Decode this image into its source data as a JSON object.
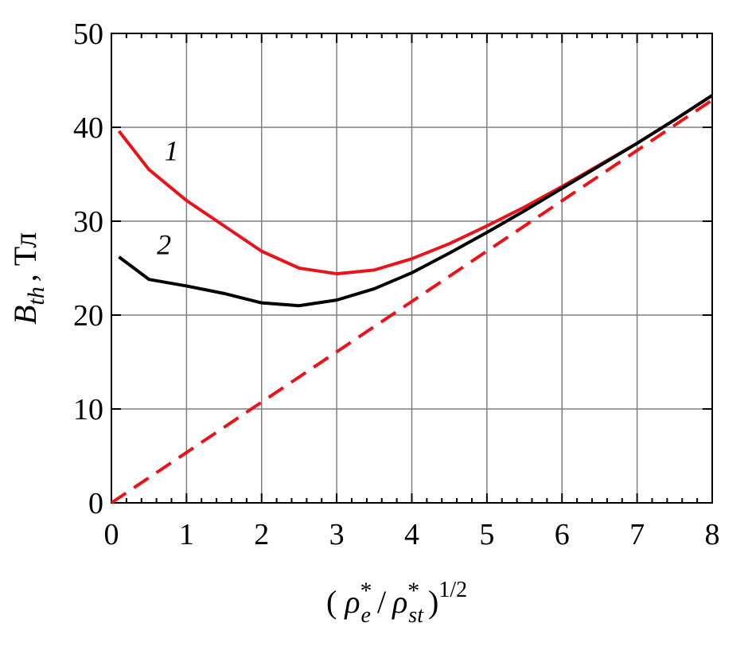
{
  "chart_data": {
    "type": "line",
    "xlabel_parts": [
      "(",
      "ρ",
      "*",
      "e",
      "/",
      "ρ",
      "*",
      "st",
      ")",
      "1/2"
    ],
    "ylabel_parts": [
      "B",
      "th",
      ", Тл"
    ],
    "series": [
      {
        "name": "1",
        "color": "#e8141a",
        "dash": false,
        "x": [
          0.1,
          0.5,
          1,
          1.5,
          2,
          2.5,
          3,
          3.5,
          4,
          4.5,
          5,
          5.5,
          6,
          6.5,
          7,
          7.5,
          8
        ],
        "values": [
          39.6,
          35.5,
          32.2,
          29.5,
          26.8,
          25,
          24.4,
          24.8,
          26,
          27.6,
          29.5,
          31.5,
          33.7,
          36,
          38.3,
          40.8,
          43.4
        ]
      },
      {
        "name": "2",
        "color": "#000000",
        "dash": false,
        "x": [
          0.1,
          0.5,
          1,
          1.5,
          2,
          2.5,
          3,
          3.5,
          4,
          4.5,
          5,
          5.5,
          6,
          6.5,
          7,
          7.5,
          8
        ],
        "values": [
          26.2,
          23.8,
          23.1,
          22.3,
          21.3,
          21.0,
          21.6,
          22.8,
          24.5,
          26.6,
          28.8,
          31.1,
          33.5,
          35.9,
          38.3,
          40.8,
          43.4
        ]
      },
      {
        "color": "#e8141a",
        "dash": true,
        "x": [
          0,
          8
        ],
        "values": [
          0,
          42.9
        ]
      }
    ],
    "xlim": [
      0,
      8
    ],
    "xticks": [
      0,
      1,
      2,
      3,
      4,
      5,
      6,
      7,
      8
    ],
    "ylim": [
      0,
      50
    ],
    "yticks": [
      0,
      10,
      20,
      30,
      40,
      50
    ],
    "grid": true
  }
}
